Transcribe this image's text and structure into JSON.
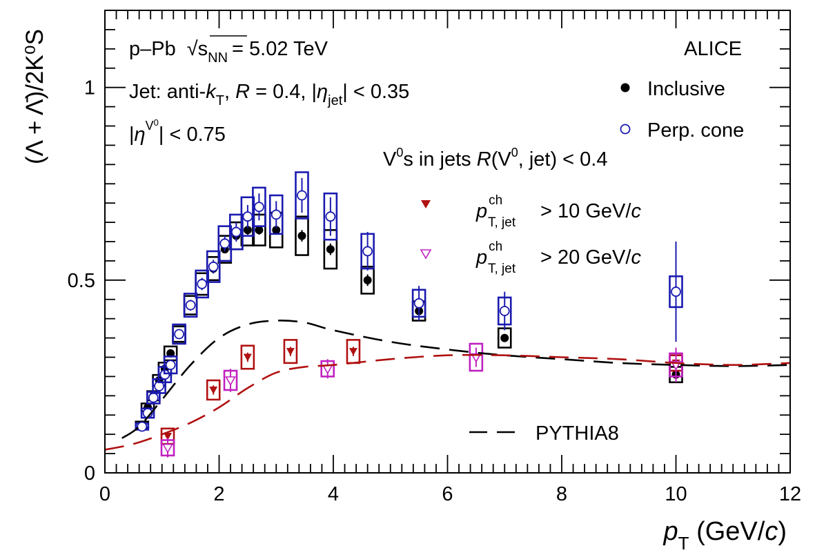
{
  "chart_data": {
    "type": "scatter",
    "experiment": "ALICE",
    "system": {
      "collision": "p–Pb",
      "energy_symbol": "√s",
      "energy_sub": "NN",
      "energy_value": "= 5.02 TeV"
    },
    "jet_cuts": {
      "text_a": "Jet: anti-",
      "k": "k",
      "k_sub": "T",
      "text_b": ", ",
      "R": "R",
      "text_c": " = 0.4, |",
      "eta": "η",
      "eta_sub": "jet",
      "text_d": "| < 0.35"
    },
    "v0_cut": {
      "text_a": "|",
      "eta": "η",
      "sup": "V",
      "sup_zero": "0",
      "text_b": "| < 0.75"
    },
    "selection": {
      "text_a": "V",
      "zero": "0",
      "text_b": "s in jets ",
      "R": "R",
      "text_c": "(V",
      "text_d": ", jet) < 0.4"
    },
    "xlabel": {
      "p": "p",
      "sub": "T",
      "rest": " (GeV/",
      "c": "c",
      "close": ")"
    },
    "ylabel": "(Λ + Λ̄)/2K⁰S",
    "xlim": [
      0,
      12
    ],
    "ylim": [
      0,
      1.2
    ],
    "x_ticks": [
      "0",
      "2",
      "4",
      "6",
      "8",
      "10",
      "12"
    ],
    "y_ticks": [
      "0",
      "0.5",
      "1"
    ],
    "x_tick_values": [
      0,
      2,
      4,
      6,
      8,
      10,
      12
    ],
    "y_tick_values": [
      0,
      0.5,
      1
    ],
    "legend_top": [
      {
        "key": "inclusive",
        "label": "Inclusive"
      },
      {
        "key": "perp",
        "label": "Perp. cone"
      }
    ],
    "legend_jet": [
      {
        "key": "jet10",
        "label_a": "p",
        "sup": "ch",
        "sub": "T, jet",
        "label_b": " > 10 GeV/",
        "c": "c"
      },
      {
        "key": "jet20",
        "label_a": "p",
        "sup": "ch",
        "sub": "T, jet",
        "label_b": " > 20 GeV/",
        "c": "c"
      }
    ],
    "legend_model": "PYTHIA8",
    "colors": {
      "inclusive": "#000000",
      "perp": "#1a1ab0",
      "jet10": "#b01010",
      "jet20": "#c020c0",
      "pythia_incl": "#000000",
      "pythia_jet": "#b01010"
    },
    "series": [
      {
        "key": "inclusive",
        "name": "Inclusive",
        "marker": "filled-circle",
        "x": [
          0.65,
          0.75,
          0.85,
          0.95,
          1.05,
          1.15,
          1.3,
          1.5,
          1.7,
          1.9,
          2.1,
          2.3,
          2.5,
          2.7,
          3.0,
          3.45,
          3.95,
          4.6,
          5.5,
          7.0,
          10.0
        ],
        "y": [
          0.125,
          0.17,
          0.2,
          0.24,
          0.27,
          0.31,
          0.36,
          0.435,
          0.49,
          0.53,
          0.58,
          0.615,
          0.63,
          0.63,
          0.63,
          0.615,
          0.58,
          0.5,
          0.42,
          0.35,
          0.255
        ],
        "err": [
          0.005,
          0.006,
          0.006,
          0.007,
          0.007,
          0.008,
          0.008,
          0.009,
          0.01,
          0.01,
          0.01,
          0.01,
          0.012,
          0.012,
          0.012,
          0.015,
          0.015,
          0.015,
          0.01,
          0.01,
          0.012
        ],
        "sys": [
          0.008,
          0.01,
          0.012,
          0.014,
          0.016,
          0.018,
          0.02,
          0.024,
          0.028,
          0.03,
          0.035,
          0.035,
          0.04,
          0.04,
          0.045,
          0.05,
          0.05,
          0.035,
          0.025,
          0.025,
          0.02
        ]
      },
      {
        "key": "perp",
        "name": "Perp. cone",
        "marker": "open-circle",
        "x": [
          0.65,
          0.75,
          0.85,
          0.95,
          1.05,
          1.15,
          1.3,
          1.5,
          1.7,
          1.9,
          2.1,
          2.3,
          2.5,
          2.7,
          3.0,
          3.45,
          3.95,
          4.6,
          5.5,
          7.0,
          10.0
        ],
        "y": [
          0.12,
          0.155,
          0.195,
          0.225,
          0.255,
          0.28,
          0.36,
          0.435,
          0.49,
          0.535,
          0.595,
          0.625,
          0.665,
          0.69,
          0.67,
          0.72,
          0.665,
          0.575,
          0.44,
          0.42,
          0.47
        ],
        "err": [
          0.006,
          0.007,
          0.008,
          0.008,
          0.009,
          0.01,
          0.012,
          0.014,
          0.016,
          0.018,
          0.02,
          0.025,
          0.03,
          0.035,
          0.035,
          0.045,
          0.05,
          0.05,
          0.045,
          0.05,
          0.13
        ],
        "sys": [
          0.008,
          0.012,
          0.015,
          0.018,
          0.02,
          0.022,
          0.025,
          0.03,
          0.035,
          0.04,
          0.045,
          0.045,
          0.05,
          0.05,
          0.05,
          0.06,
          0.06,
          0.045,
          0.035,
          0.035,
          0.04
        ]
      },
      {
        "key": "jet10",
        "name": "pT,jet ch > 10 GeV/c",
        "marker": "filled-triangle-down",
        "x": [
          1.1,
          1.9,
          2.5,
          3.25,
          4.35,
          10.0
        ],
        "y": [
          0.095,
          0.215,
          0.3,
          0.315,
          0.315,
          0.285
        ],
        "err": [
          0.01,
          0.012,
          0.012,
          0.012,
          0.012,
          0.02
        ],
        "sys": [
          0.02,
          0.025,
          0.03,
          0.03,
          0.03,
          0.02
        ]
      },
      {
        "key": "jet20",
        "name": "pT,jet ch > 20 GeV/c",
        "marker": "open-triangle-down",
        "x": [
          1.1,
          2.2,
          3.9,
          6.5,
          10.0
        ],
        "y": [
          0.065,
          0.24,
          0.27,
          0.3,
          0.28
        ],
        "err": [
          0.025,
          0.03,
          0.025,
          0.025,
          0.045
        ],
        "sys": [
          0.02,
          0.025,
          0.02,
          0.035,
          0.03
        ]
      }
    ],
    "model_curves": [
      {
        "key": "pythia_incl",
        "x": [
          0.3,
          0.6,
          1.0,
          1.5,
          2.0,
          2.5,
          3.0,
          3.5,
          4.0,
          5.0,
          6.0,
          7.0,
          8.0,
          9.0,
          10.0,
          11.0,
          12.0
        ],
        "y": [
          0.09,
          0.12,
          0.19,
          0.28,
          0.35,
          0.385,
          0.395,
          0.39,
          0.37,
          0.34,
          0.32,
          0.305,
          0.295,
          0.285,
          0.28,
          0.277,
          0.28
        ]
      },
      {
        "key": "pythia_jet",
        "x": [
          0.0,
          0.5,
          1.0,
          1.5,
          2.0,
          2.5,
          3.0,
          3.5,
          4.0,
          5.0,
          6.0,
          7.0,
          8.0,
          9.0,
          10.0,
          11.0,
          12.0
        ],
        "y": [
          0.06,
          0.075,
          0.1,
          0.13,
          0.17,
          0.22,
          0.26,
          0.275,
          0.28,
          0.295,
          0.305,
          0.305,
          0.3,
          0.295,
          0.285,
          0.28,
          0.285
        ]
      }
    ]
  }
}
